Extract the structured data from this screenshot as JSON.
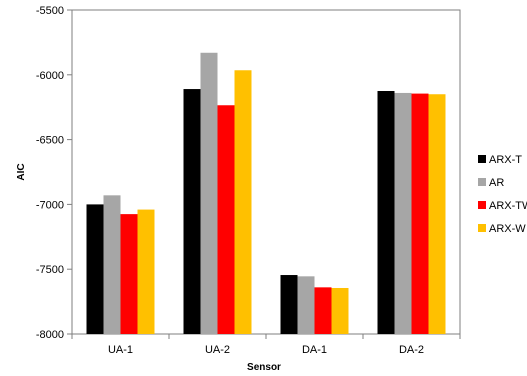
{
  "chart_data": {
    "type": "bar",
    "title": "",
    "xlabel": "Sensor",
    "ylabel": "AIC",
    "categories": [
      "UA-1",
      "UA-2",
      "DA-1",
      "DA-2"
    ],
    "ylim": [
      -8000,
      -5500
    ],
    "yticks": [
      -5500,
      -6000,
      -6500,
      -7000,
      -7500,
      -8000
    ],
    "grid": false,
    "legend_position": "right",
    "series": [
      {
        "name": "ARX-T",
        "color": "#000000",
        "values": [
          -7000,
          -6110,
          -7545,
          -6125
        ]
      },
      {
        "name": "AR",
        "color": "#a6a6a6",
        "values": [
          -6930,
          -5830,
          -7555,
          -6140
        ]
      },
      {
        "name": "ARX-TW",
        "color": "#ff0000",
        "values": [
          -7075,
          -6235,
          -7640,
          -6145
        ]
      },
      {
        "name": "ARX-W",
        "color": "#ffc000",
        "values": [
          -7040,
          -5965,
          -7645,
          -6150
        ]
      }
    ]
  }
}
